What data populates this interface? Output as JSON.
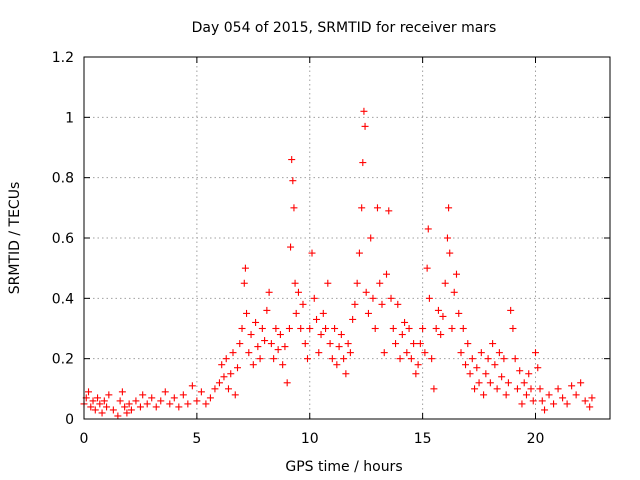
{
  "chart_data": {
    "type": "scatter",
    "title": "Day 054 of 2015, SRMTID for receiver mars",
    "xlabel": "GPS time / hours",
    "ylabel": "SRMTID / TECUs",
    "xlim": [
      0,
      23.3
    ],
    "ylim": [
      0,
      1.2
    ],
    "x_ticks": [
      0,
      5,
      10,
      15,
      20
    ],
    "x_tick_labels": [
      "0",
      "5",
      "10",
      "15",
      "20"
    ],
    "y_ticks": [
      0,
      0.2,
      0.4,
      0.6,
      0.8,
      1.0,
      1.2
    ],
    "y_tick_labels": [
      "0",
      "0.2",
      "0.4",
      "0.6",
      "0.8",
      "1",
      "1.2"
    ],
    "grid": true,
    "marker": "plus",
    "series": [
      {
        "name": "SRMTID",
        "color": "#ff0000",
        "points": [
          [
            0.0,
            0.05
          ],
          [
            0.1,
            0.07
          ],
          [
            0.2,
            0.09
          ],
          [
            0.3,
            0.04
          ],
          [
            0.4,
            0.06
          ],
          [
            0.5,
            0.03
          ],
          [
            0.6,
            0.07
          ],
          [
            0.7,
            0.05
          ],
          [
            0.8,
            0.02
          ],
          [
            0.9,
            0.06
          ],
          [
            1.0,
            0.04
          ],
          [
            1.1,
            0.08
          ],
          [
            1.3,
            0.03
          ],
          [
            1.5,
            0.01
          ],
          [
            1.6,
            0.06
          ],
          [
            1.7,
            0.09
          ],
          [
            1.8,
            0.04
          ],
          [
            1.9,
            0.02
          ],
          [
            2.0,
            0.05
          ],
          [
            2.1,
            0.03
          ],
          [
            2.3,
            0.06
          ],
          [
            2.5,
            0.04
          ],
          [
            2.6,
            0.08
          ],
          [
            2.8,
            0.05
          ],
          [
            3.0,
            0.07
          ],
          [
            3.2,
            0.04
          ],
          [
            3.4,
            0.06
          ],
          [
            3.6,
            0.09
          ],
          [
            3.8,
            0.05
          ],
          [
            4.0,
            0.07
          ],
          [
            4.2,
            0.04
          ],
          [
            4.4,
            0.08
          ],
          [
            4.6,
            0.05
          ],
          [
            4.8,
            0.11
          ],
          [
            5.0,
            0.06
          ],
          [
            5.2,
            0.09
          ],
          [
            5.4,
            0.05
          ],
          [
            5.6,
            0.07
          ],
          [
            5.8,
            0.1
          ],
          [
            6.0,
            0.12
          ],
          [
            6.1,
            0.18
          ],
          [
            6.2,
            0.14
          ],
          [
            6.3,
            0.2
          ],
          [
            6.4,
            0.1
          ],
          [
            6.5,
            0.15
          ],
          [
            6.6,
            0.22
          ],
          [
            6.7,
            0.08
          ],
          [
            6.8,
            0.17
          ],
          [
            6.9,
            0.25
          ],
          [
            7.0,
            0.3
          ],
          [
            7.1,
            0.45
          ],
          [
            7.15,
            0.5
          ],
          [
            7.2,
            0.35
          ],
          [
            7.3,
            0.22
          ],
          [
            7.4,
            0.28
          ],
          [
            7.5,
            0.18
          ],
          [
            7.6,
            0.32
          ],
          [
            7.7,
            0.24
          ],
          [
            7.8,
            0.2
          ],
          [
            7.9,
            0.3
          ],
          [
            8.0,
            0.26
          ],
          [
            8.1,
            0.36
          ],
          [
            8.2,
            0.42
          ],
          [
            8.3,
            0.25
          ],
          [
            8.4,
            0.2
          ],
          [
            8.5,
            0.3
          ],
          [
            8.6,
            0.23
          ],
          [
            8.7,
            0.28
          ],
          [
            8.8,
            0.18
          ],
          [
            8.9,
            0.24
          ],
          [
            9.0,
            0.12
          ],
          [
            9.1,
            0.3
          ],
          [
            9.15,
            0.57
          ],
          [
            9.2,
            0.86
          ],
          [
            9.25,
            0.79
          ],
          [
            9.3,
            0.7
          ],
          [
            9.35,
            0.45
          ],
          [
            9.4,
            0.35
          ],
          [
            9.5,
            0.42
          ],
          [
            9.6,
            0.3
          ],
          [
            9.7,
            0.38
          ],
          [
            9.8,
            0.25
          ],
          [
            9.9,
            0.2
          ],
          [
            10.0,
            0.3
          ],
          [
            10.1,
            0.55
          ],
          [
            10.2,
            0.4
          ],
          [
            10.3,
            0.33
          ],
          [
            10.4,
            0.22
          ],
          [
            10.5,
            0.28
          ],
          [
            10.6,
            0.35
          ],
          [
            10.7,
            0.3
          ],
          [
            10.8,
            0.45
          ],
          [
            10.9,
            0.25
          ],
          [
            11.0,
            0.2
          ],
          [
            11.1,
            0.3
          ],
          [
            11.2,
            0.18
          ],
          [
            11.3,
            0.24
          ],
          [
            11.4,
            0.28
          ],
          [
            11.5,
            0.2
          ],
          [
            11.6,
            0.15
          ],
          [
            11.7,
            0.25
          ],
          [
            11.8,
            0.22
          ],
          [
            11.9,
            0.33
          ],
          [
            12.0,
            0.38
          ],
          [
            12.1,
            0.45
          ],
          [
            12.2,
            0.55
          ],
          [
            12.3,
            0.7
          ],
          [
            12.35,
            0.85
          ],
          [
            12.4,
            1.02
          ],
          [
            12.45,
            0.97
          ],
          [
            12.5,
            0.42
          ],
          [
            12.6,
            0.35
          ],
          [
            12.7,
            0.6
          ],
          [
            12.8,
            0.4
          ],
          [
            12.9,
            0.3
          ],
          [
            13.0,
            0.7
          ],
          [
            13.1,
            0.45
          ],
          [
            13.2,
            0.38
          ],
          [
            13.3,
            0.22
          ],
          [
            13.4,
            0.48
          ],
          [
            13.5,
            0.69
          ],
          [
            13.6,
            0.4
          ],
          [
            13.7,
            0.3
          ],
          [
            13.8,
            0.25
          ],
          [
            13.9,
            0.38
          ],
          [
            14.0,
            0.2
          ],
          [
            14.1,
            0.28
          ],
          [
            14.2,
            0.32
          ],
          [
            14.3,
            0.22
          ],
          [
            14.4,
            0.3
          ],
          [
            14.5,
            0.2
          ],
          [
            14.6,
            0.25
          ],
          [
            14.7,
            0.15
          ],
          [
            14.8,
            0.18
          ],
          [
            14.9,
            0.25
          ],
          [
            15.0,
            0.3
          ],
          [
            15.1,
            0.22
          ],
          [
            15.2,
            0.5
          ],
          [
            15.25,
            0.63
          ],
          [
            15.3,
            0.4
          ],
          [
            15.4,
            0.2
          ],
          [
            15.5,
            0.1
          ],
          [
            15.6,
            0.3
          ],
          [
            15.7,
            0.36
          ],
          [
            15.8,
            0.28
          ],
          [
            15.9,
            0.34
          ],
          [
            16.0,
            0.45
          ],
          [
            16.1,
            0.6
          ],
          [
            16.15,
            0.7
          ],
          [
            16.2,
            0.55
          ],
          [
            16.3,
            0.3
          ],
          [
            16.4,
            0.42
          ],
          [
            16.5,
            0.48
          ],
          [
            16.6,
            0.35
          ],
          [
            16.7,
            0.22
          ],
          [
            16.8,
            0.3
          ],
          [
            16.9,
            0.18
          ],
          [
            17.0,
            0.25
          ],
          [
            17.1,
            0.15
          ],
          [
            17.2,
            0.2
          ],
          [
            17.3,
            0.1
          ],
          [
            17.4,
            0.17
          ],
          [
            17.5,
            0.12
          ],
          [
            17.6,
            0.22
          ],
          [
            17.7,
            0.08
          ],
          [
            17.8,
            0.15
          ],
          [
            17.9,
            0.2
          ],
          [
            18.0,
            0.12
          ],
          [
            18.1,
            0.25
          ],
          [
            18.2,
            0.18
          ],
          [
            18.3,
            0.1
          ],
          [
            18.4,
            0.22
          ],
          [
            18.5,
            0.14
          ],
          [
            18.6,
            0.2
          ],
          [
            18.7,
            0.08
          ],
          [
            18.8,
            0.12
          ],
          [
            18.9,
            0.36
          ],
          [
            19.0,
            0.3
          ],
          [
            19.1,
            0.2
          ],
          [
            19.2,
            0.1
          ],
          [
            19.3,
            0.16
          ],
          [
            19.4,
            0.05
          ],
          [
            19.5,
            0.12
          ],
          [
            19.6,
            0.08
          ],
          [
            19.7,
            0.15
          ],
          [
            19.8,
            0.1
          ],
          [
            19.9,
            0.06
          ],
          [
            20.0,
            0.22
          ],
          [
            20.1,
            0.17
          ],
          [
            20.2,
            0.1
          ],
          [
            20.3,
            0.06
          ],
          [
            20.4,
            0.03
          ],
          [
            20.6,
            0.08
          ],
          [
            20.8,
            0.05
          ],
          [
            21.0,
            0.1
          ],
          [
            21.2,
            0.07
          ],
          [
            21.4,
            0.05
          ],
          [
            21.6,
            0.11
          ],
          [
            21.8,
            0.08
          ],
          [
            22.0,
            0.12
          ],
          [
            22.2,
            0.06
          ],
          [
            22.4,
            0.04
          ],
          [
            22.5,
            0.07
          ]
        ]
      }
    ]
  }
}
